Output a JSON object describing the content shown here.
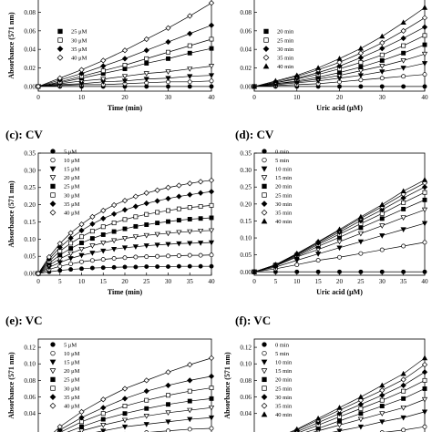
{
  "chart_data": [
    {
      "id": "a",
      "type": "scatter",
      "panel_label": "",
      "xlabel": "Time (min)",
      "ylabel": "Absorbance (571 nm)",
      "xlim": [
        0,
        40
      ],
      "ylim": [
        -0.005,
        0.105
      ],
      "xticks": [
        0,
        10,
        20,
        30,
        40
      ],
      "yticks": [
        0,
        0.02,
        0.04,
        0.06,
        0.08
      ],
      "yfmt": 2,
      "legend": "top-left",
      "x": [
        0,
        5,
        10,
        15,
        20,
        25,
        30,
        35,
        40
      ],
      "series": [
        {
          "name": "",
          "marker": "filled-circle",
          "values": [
            0.0,
            0.0,
            0.0,
            0.0,
            0.0,
            0.0,
            0.0,
            0.0,
            0.0
          ]
        },
        {
          "name": "",
          "marker": "open-circle",
          "values": [
            0.0,
            0.001,
            0.002,
            0.002,
            0.003,
            0.004,
            0.005,
            0.005,
            0.006
          ]
        },
        {
          "name": "",
          "marker": "filled-triangle",
          "values": [
            0.0,
            0.002,
            0.003,
            0.005,
            0.006,
            0.008,
            0.009,
            0.011,
            0.012
          ]
        },
        {
          "name": "",
          "marker": "open-triangle",
          "values": [
            0.0,
            0.003,
            0.006,
            0.008,
            0.011,
            0.014,
            0.016,
            0.019,
            0.022
          ]
        },
        {
          "name": "25 μM",
          "marker": "filled-square",
          "values": [
            0.0,
            0.004,
            0.009,
            0.014,
            0.019,
            0.025,
            0.03,
            0.036,
            0.041
          ]
        },
        {
          "name": "30 μM",
          "marker": "open-square",
          "values": [
            0.0,
            0.005,
            0.011,
            0.017,
            0.023,
            0.03,
            0.037,
            0.044,
            0.051
          ]
        },
        {
          "name": "35 μM",
          "marker": "filled-diamond",
          "values": [
            0.0,
            0.007,
            0.014,
            0.022,
            0.03,
            0.039,
            0.048,
            0.057,
            0.066
          ]
        },
        {
          "name": "40 μM",
          "marker": "open-diamond",
          "values": [
            0.0,
            0.009,
            0.018,
            0.028,
            0.039,
            0.051,
            0.063,
            0.076,
            0.09
          ]
        }
      ]
    },
    {
      "id": "b",
      "type": "scatter",
      "panel_label": "",
      "xlabel": "Uric acid (μM)",
      "ylabel": "",
      "xlim": [
        0,
        40
      ],
      "ylim": [
        -0.005,
        0.105
      ],
      "xticks": [
        0,
        10,
        20,
        30,
        40
      ],
      "yticks": [
        0,
        0.02,
        0.04,
        0.06,
        0.08
      ],
      "yfmt": 2,
      "legend": "top-left",
      "x": [
        0,
        5,
        10,
        15,
        20,
        25,
        30,
        35,
        40
      ],
      "series": [
        {
          "name": "",
          "marker": "filled-circle",
          "values": [
            0.0,
            0.0,
            0.0,
            0.0,
            0.0,
            0.0,
            0.0,
            0.0,
            0.0
          ]
        },
        {
          "name": "",
          "marker": "open-circle",
          "values": [
            0.0,
            0.001,
            0.002,
            0.003,
            0.005,
            0.007,
            0.009,
            0.011,
            0.013
          ]
        },
        {
          "name": "",
          "marker": "filled-triangle",
          "values": [
            0.0,
            0.002,
            0.004,
            0.006,
            0.009,
            0.012,
            0.016,
            0.02,
            0.025
          ]
        },
        {
          "name": "",
          "marker": "open-triangle",
          "values": [
            0.0,
            0.003,
            0.005,
            0.008,
            0.012,
            0.017,
            0.022,
            0.028,
            0.035
          ]
        },
        {
          "name": "20 min",
          "marker": "filled-square",
          "values": [
            0.0,
            0.003,
            0.006,
            0.01,
            0.015,
            0.021,
            0.028,
            0.036,
            0.045
          ]
        },
        {
          "name": "25 min",
          "marker": "open-square",
          "values": [
            0.0,
            0.004,
            0.008,
            0.013,
            0.019,
            0.026,
            0.034,
            0.044,
            0.055
          ]
        },
        {
          "name": "30 min",
          "marker": "filled-diamond",
          "values": [
            0.0,
            0.004,
            0.009,
            0.015,
            0.022,
            0.031,
            0.041,
            0.052,
            0.064
          ]
        },
        {
          "name": "35 min",
          "marker": "open-diamond",
          "values": [
            0.0,
            0.005,
            0.011,
            0.018,
            0.026,
            0.036,
            0.047,
            0.06,
            0.074
          ]
        },
        {
          "name": "40 min",
          "marker": "filled-triangle-up",
          "values": [
            0.0,
            0.006,
            0.012,
            0.02,
            0.03,
            0.041,
            0.054,
            0.069,
            0.085
          ]
        }
      ]
    },
    {
      "id": "c",
      "type": "scatter",
      "panel_label": "(c): CV",
      "xlabel": "Time (min)",
      "ylabel": "Absorbance (571 nm)",
      "xlim": [
        0,
        40
      ],
      "ylim": [
        -0.005,
        0.35
      ],
      "xticks": [
        0,
        5,
        10,
        15,
        20,
        25,
        30,
        35,
        40
      ],
      "yticks": [
        0,
        0.05,
        0.1,
        0.15,
        0.2,
        0.25,
        0.3,
        0.35
      ],
      "yfmt": 2,
      "legend": "top-left",
      "x": [
        0,
        2.5,
        5,
        7.5,
        10,
        12.5,
        15,
        17.5,
        20,
        22.5,
        25,
        27.5,
        30,
        32.5,
        35,
        37.5,
        40
      ],
      "series": [
        {
          "name": "5 μM",
          "marker": "filled-circle",
          "values": [
            0.0,
            0.005,
            0.009,
            0.012,
            0.014,
            0.016,
            0.017,
            0.018,
            0.019,
            0.019,
            0.02,
            0.02,
            0.02,
            0.021,
            0.021,
            0.021,
            0.021
          ]
        },
        {
          "name": "10 μM",
          "marker": "open-circle",
          "values": [
            0.0,
            0.012,
            0.021,
            0.028,
            0.034,
            0.038,
            0.041,
            0.044,
            0.046,
            0.048,
            0.049,
            0.05,
            0.051,
            0.052,
            0.053,
            0.053,
            0.054
          ]
        },
        {
          "name": "15 μM",
          "marker": "filled-triangle",
          "values": [
            0.0,
            0.018,
            0.032,
            0.044,
            0.053,
            0.06,
            0.066,
            0.071,
            0.075,
            0.078,
            0.081,
            0.083,
            0.085,
            0.087,
            0.088,
            0.089,
            0.09
          ]
        },
        {
          "name": "20 μM",
          "marker": "open-triangle",
          "values": [
            0.0,
            0.024,
            0.043,
            0.058,
            0.071,
            0.081,
            0.089,
            0.096,
            0.102,
            0.107,
            0.111,
            0.114,
            0.117,
            0.12,
            0.122,
            0.124,
            0.125
          ]
        },
        {
          "name": "25 μM",
          "marker": "filled-square",
          "values": [
            0.0,
            0.03,
            0.054,
            0.073,
            0.089,
            0.102,
            0.113,
            0.122,
            0.13,
            0.137,
            0.142,
            0.147,
            0.151,
            0.155,
            0.158,
            0.16,
            0.162
          ]
        },
        {
          "name": "30 μM",
          "marker": "open-square",
          "values": [
            0.0,
            0.036,
            0.065,
            0.088,
            0.107,
            0.123,
            0.136,
            0.147,
            0.157,
            0.165,
            0.172,
            0.178,
            0.183,
            0.188,
            0.192,
            0.195,
            0.198
          ]
        },
        {
          "name": "35 μM",
          "marker": "filled-diamond",
          "values": [
            0.0,
            0.042,
            0.076,
            0.103,
            0.125,
            0.144,
            0.16,
            0.173,
            0.185,
            0.195,
            0.204,
            0.211,
            0.218,
            0.224,
            0.229,
            0.234,
            0.238
          ]
        },
        {
          "name": "40 μM",
          "marker": "open-diamond",
          "values": [
            0.0,
            0.048,
            0.087,
            0.118,
            0.143,
            0.165,
            0.183,
            0.199,
            0.212,
            0.224,
            0.234,
            0.242,
            0.25,
            0.256,
            0.262,
            0.267,
            0.271
          ]
        }
      ]
    },
    {
      "id": "d",
      "type": "scatter",
      "panel_label": "(d): CV",
      "xlabel": "Uric acid (μM)",
      "ylabel": "",
      "xlim": [
        0,
        40
      ],
      "ylim": [
        -0.01,
        0.35
      ],
      "xticks": [
        0,
        5,
        10,
        15,
        20,
        25,
        30,
        35,
        40
      ],
      "yticks": [
        0,
        0.05,
        0.1,
        0.15,
        0.2,
        0.25,
        0.3,
        0.35
      ],
      "yfmt": 2,
      "legend": "top-left",
      "x": [
        0,
        5,
        10,
        15,
        20,
        25,
        30,
        35,
        40
      ],
      "series": [
        {
          "name": "0 min",
          "marker": "filled-circle",
          "values": [
            0.0,
            0.0,
            0.0,
            0.0,
            0.0,
            0.0,
            0.0,
            0.0,
            0.0
          ]
        },
        {
          "name": "5 min",
          "marker": "open-circle",
          "values": [
            0.0,
            0.009,
            0.021,
            0.034,
            0.043,
            0.054,
            0.065,
            0.076,
            0.087
          ]
        },
        {
          "name": "10 min",
          "marker": "filled-triangle",
          "values": [
            0.0,
            0.014,
            0.034,
            0.053,
            0.071,
            0.089,
            0.107,
            0.125,
            0.143
          ]
        },
        {
          "name": "15 min",
          "marker": "open-triangle",
          "values": [
            0.0,
            0.017,
            0.044,
            0.066,
            0.089,
            0.113,
            0.136,
            0.16,
            0.183
          ]
        },
        {
          "name": "20 min",
          "marker": "filled-square",
          "values": [
            0.0,
            0.019,
            0.046,
            0.075,
            0.102,
            0.13,
            0.157,
            0.185,
            0.212
          ]
        },
        {
          "name": "25 min",
          "marker": "open-square",
          "values": [
            0.0,
            0.02,
            0.049,
            0.081,
            0.111,
            0.142,
            0.172,
            0.204,
            0.234
          ]
        },
        {
          "name": "30 min",
          "marker": "filled-diamond",
          "values": [
            0.0,
            0.02,
            0.051,
            0.085,
            0.117,
            0.151,
            0.183,
            0.218,
            0.25
          ]
        },
        {
          "name": "35 min",
          "marker": "open-diamond",
          "values": [
            0.0,
            0.021,
            0.053,
            0.088,
            0.122,
            0.158,
            0.192,
            0.229,
            0.262
          ]
        },
        {
          "name": "40 min",
          "marker": "filled-triangle-up",
          "values": [
            0.0,
            0.021,
            0.054,
            0.089,
            0.125,
            0.162,
            0.198,
            0.238,
            0.271
          ]
        }
      ]
    },
    {
      "id": "e",
      "type": "scatter",
      "panel_label": "(e): VC",
      "xlabel": "",
      "ylabel": "Absorbance (571 nm)",
      "xlim": [
        0,
        40
      ],
      "ylim": [
        0.0,
        0.13
      ],
      "xticks": [],
      "yticks": [
        0.04,
        0.06,
        0.08,
        0.1,
        0.12
      ],
      "yfmt": 2,
      "legend": "top-left",
      "x": [
        0,
        5,
        10,
        15,
        20,
        25,
        30,
        35,
        40
      ],
      "series": [
        {
          "name": "5 μM",
          "marker": "filled-circle",
          "values": [
            0.0,
            0.002,
            0.004,
            0.005,
            0.006,
            0.007,
            0.008,
            0.008,
            0.009
          ]
        },
        {
          "name": "10 μM",
          "marker": "open-circle",
          "values": [
            0.0,
            0.005,
            0.009,
            0.012,
            0.015,
            0.017,
            0.019,
            0.021,
            0.022
          ]
        },
        {
          "name": "15 μM",
          "marker": "filled-triangle",
          "values": [
            0.0,
            0.008,
            0.014,
            0.019,
            0.024,
            0.027,
            0.03,
            0.033,
            0.035
          ]
        },
        {
          "name": "20 μM",
          "marker": "open-triangle",
          "values": [
            0.0,
            0.011,
            0.019,
            0.026,
            0.032,
            0.037,
            0.041,
            0.044,
            0.047
          ]
        },
        {
          "name": "25 μM",
          "marker": "filled-square",
          "values": [
            0.0,
            0.014,
            0.024,
            0.033,
            0.04,
            0.046,
            0.051,
            0.055,
            0.058
          ]
        },
        {
          "name": "30 μM",
          "marker": "open-square",
          "values": [
            0.0,
            0.017,
            0.03,
            0.04,
            0.049,
            0.056,
            0.062,
            0.067,
            0.071
          ]
        },
        {
          "name": "35 μM",
          "marker": "filled-diamond",
          "values": [
            0.0,
            0.02,
            0.035,
            0.047,
            0.058,
            0.067,
            0.074,
            0.08,
            0.085
          ]
        },
        {
          "name": "40 μM",
          "marker": "open-diamond",
          "values": [
            0.0,
            0.024,
            0.042,
            0.057,
            0.07,
            0.08,
            0.09,
            0.099,
            0.107
          ]
        }
      ]
    },
    {
      "id": "f",
      "type": "scatter",
      "panel_label": "(f): VC",
      "xlabel": "",
      "ylabel": "Absorbance (571 nm)",
      "xlim": [
        0,
        40
      ],
      "ylim": [
        0.0,
        0.13
      ],
      "xticks": [],
      "yticks": [
        0.04,
        0.06,
        0.08,
        0.1,
        0.12
      ],
      "yfmt": 2,
      "legend": "top-left",
      "x": [
        0,
        5,
        10,
        15,
        20,
        25,
        30,
        35,
        40
      ],
      "series": [
        {
          "name": "0 min",
          "marker": "filled-circle",
          "values": [
            0.0,
            0.0,
            0.0,
            0.0,
            0.0,
            0.0,
            0.0,
            0.0,
            0.0
          ]
        },
        {
          "name": "5 min",
          "marker": "open-circle",
          "values": [
            0.0,
            0.002,
            0.005,
            0.008,
            0.011,
            0.014,
            0.017,
            0.02,
            0.024
          ]
        },
        {
          "name": "10 min",
          "marker": "filled-triangle",
          "values": [
            0.0,
            0.004,
            0.009,
            0.014,
            0.019,
            0.024,
            0.03,
            0.035,
            0.042
          ]
        },
        {
          "name": "15 min",
          "marker": "open-triangle",
          "values": [
            0.0,
            0.005,
            0.012,
            0.019,
            0.026,
            0.033,
            0.04,
            0.047,
            0.057
          ]
        },
        {
          "name": "20 min",
          "marker": "filled-square",
          "values": [
            0.0,
            0.006,
            0.014,
            0.022,
            0.031,
            0.04,
            0.049,
            0.058,
            0.07
          ]
        },
        {
          "name": "25 min",
          "marker": "open-square",
          "values": [
            0.0,
            0.007,
            0.016,
            0.026,
            0.036,
            0.046,
            0.056,
            0.067,
            0.08
          ]
        },
        {
          "name": "30 min",
          "marker": "filled-diamond",
          "values": [
            0.0,
            0.008,
            0.018,
            0.029,
            0.04,
            0.051,
            0.062,
            0.074,
            0.09
          ]
        },
        {
          "name": "35 min",
          "marker": "open-diamond",
          "values": [
            0.0,
            0.009,
            0.02,
            0.032,
            0.044,
            0.056,
            0.068,
            0.081,
            0.099
          ]
        },
        {
          "name": "40 min",
          "marker": "filled-triangle-up",
          "values": [
            0.0,
            0.01,
            0.021,
            0.034,
            0.047,
            0.06,
            0.074,
            0.088,
            0.107
          ]
        }
      ]
    }
  ]
}
